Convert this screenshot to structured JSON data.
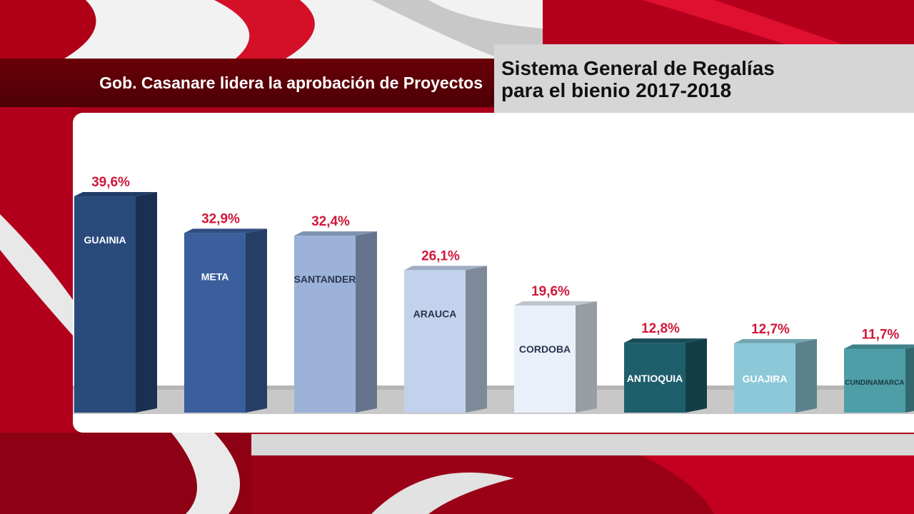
{
  "header": {
    "headline": "Gob. Casanare lidera la aprobación de Proyectos",
    "panel_line1": "Sistema General de Regalías",
    "panel_line2": "para el bienio 2017-2018"
  },
  "colors": {
    "background_red": "#a8001a",
    "headline_bar": "#5a0006",
    "panel_gray": "#d6d6d6",
    "value_label": "#d0183a",
    "floor_gray": "#c4c4c4"
  },
  "chart_data": {
    "type": "bar",
    "categories": [
      "GUAINIA",
      "META",
      "SANTANDER",
      "ARAUCA",
      "CORDOBA",
      "ANTIOQUIA",
      "GUAJIRA",
      "CUNDINAMARCA"
    ],
    "values": [
      39.6,
      32.9,
      32.4,
      26.1,
      19.6,
      12.8,
      12.7,
      11.7
    ],
    "value_labels": [
      "39,6%",
      "32,9%",
      "32,4%",
      "26,1%",
      "19,6%",
      "12,8%",
      "12,7%",
      "11,7%"
    ],
    "bar_colors": [
      "#2a4a7c",
      "#3a5f9c",
      "#9cb2d8",
      "#c2d2ec",
      "#eaf0fa",
      "#1f5f6c",
      "#8cc8d8",
      "#4e9ea8"
    ],
    "label_colors": [
      "#ffffff",
      "#ffffff",
      "#2a3550",
      "#2a3550",
      "#2a3550",
      "#ffffff",
      "#ffffff",
      "#1a3a40"
    ],
    "ylim": [
      0,
      40
    ],
    "style": "3d",
    "grid": false,
    "legend": "none"
  }
}
